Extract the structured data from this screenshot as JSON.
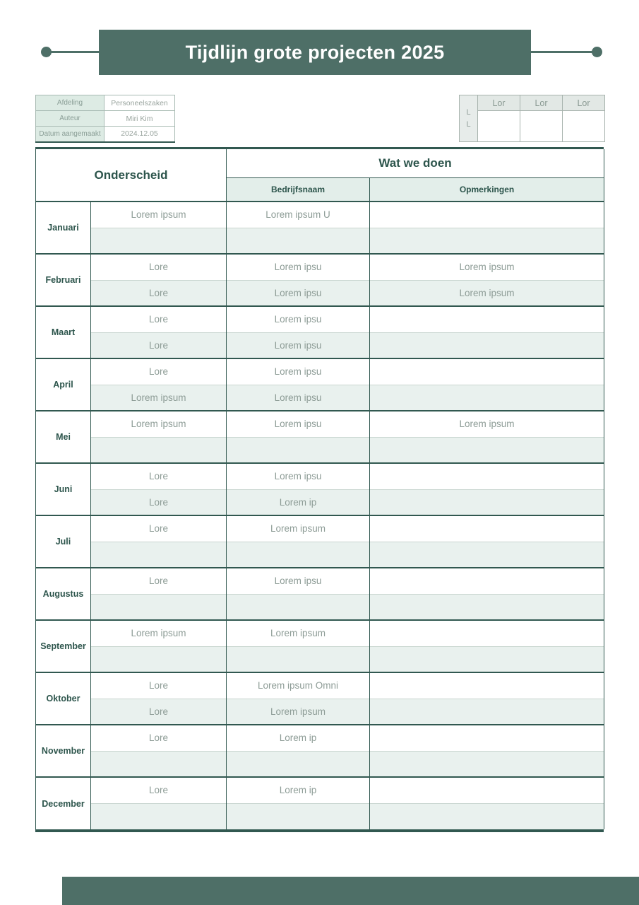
{
  "page": {
    "title": "Tijdlijn grote projecten 2025"
  },
  "meta_table": {
    "rows": [
      {
        "label": "Afdeling",
        "value": "Personeelszaken"
      },
      {
        "label": "Auteur",
        "value": "Miri Kim"
      },
      {
        "label": "Datum aangemaakt",
        "value": "2024.12.05"
      }
    ]
  },
  "legend_table": {
    "side_label": "L\nL",
    "headers": [
      "Lor",
      "Lor",
      "Lor"
    ]
  },
  "main_table": {
    "header": {
      "col_group_left": "Onderscheid",
      "col_group_right": "Wat we doen",
      "sub_headers": [
        "Bedrijfsnaam",
        "Opmerkingen"
      ]
    },
    "months": [
      {
        "name": "Januari",
        "rows": [
          [
            "Lorem ipsum",
            "Lorem ipsum U",
            ""
          ],
          [
            "",
            "",
            ""
          ]
        ]
      },
      {
        "name": "Februari",
        "rows": [
          [
            "Lore",
            "Lorem ipsu",
            "Lorem ipsum"
          ],
          [
            "Lore",
            "Lorem ipsu",
            "Lorem ipsum"
          ]
        ]
      },
      {
        "name": "Maart",
        "rows": [
          [
            "Lore",
            "Lorem ipsu",
            ""
          ],
          [
            "Lore",
            "Lorem ipsu",
            ""
          ]
        ]
      },
      {
        "name": "April",
        "rows": [
          [
            "Lore",
            "Lorem ipsu",
            ""
          ],
          [
            "Lorem ipsum",
            "Lorem ipsu",
            ""
          ]
        ]
      },
      {
        "name": "Mei",
        "rows": [
          [
            "Lorem ipsum",
            "Lorem ipsu",
            "Lorem ipsum"
          ],
          [
            "",
            "",
            ""
          ]
        ]
      },
      {
        "name": "Juni",
        "rows": [
          [
            "Lore",
            "Lorem ipsu",
            ""
          ],
          [
            "Lore",
            "Lorem ip",
            ""
          ]
        ]
      },
      {
        "name": "Juli",
        "rows": [
          [
            "Lore",
            "Lorem ipsum",
            ""
          ],
          [
            "",
            "",
            ""
          ]
        ]
      },
      {
        "name": "Augustus",
        "rows": [
          [
            "Lore",
            "Lorem ipsu",
            ""
          ],
          [
            "",
            "",
            ""
          ]
        ]
      },
      {
        "name": "September",
        "rows": [
          [
            "Lorem ipsum",
            "Lorem ipsum",
            ""
          ],
          [
            "",
            "",
            ""
          ]
        ]
      },
      {
        "name": "Oktober",
        "rows": [
          [
            "Lore",
            "Lorem ipsum Omni",
            ""
          ],
          [
            "Lore",
            "Lorem ipsum",
            ""
          ]
        ]
      },
      {
        "name": "November",
        "rows": [
          [
            "Lore",
            "Lorem ip",
            ""
          ],
          [
            "",
            "",
            ""
          ]
        ]
      },
      {
        "name": "December",
        "rows": [
          [
            "Lore",
            "Lorem ip",
            ""
          ],
          [
            "",
            "",
            ""
          ]
        ]
      }
    ]
  },
  "colors": {
    "accent": "#4e6f67",
    "border_dark": "#315850",
    "text_dark": "#2d554c",
    "text_muted": "#8d9c96",
    "row_alt_bg": "#e9f1ee",
    "subheader_bg": "#e3eeea"
  }
}
